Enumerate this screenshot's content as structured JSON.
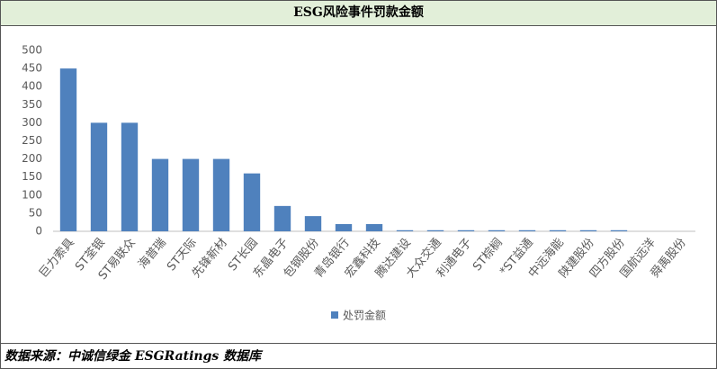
{
  "header": {
    "title": "ESG风险事件罚款金额"
  },
  "chart_data": {
    "type": "bar",
    "categories": [
      "巨力索具",
      "ST荃银",
      "ST易联众",
      "海普瑞",
      "ST天际",
      "先锋新材",
      "ST长园",
      "东晶电子",
      "包钢股份",
      "青岛银行",
      "宏鑫科技",
      "腾达建设",
      "大众交通",
      "利通电子",
      "ST棕榈",
      "*ST益通",
      "中远海能",
      "陕建股份",
      "四方股份",
      "国航远洋",
      "舜禹股份"
    ],
    "series": [
      {
        "name": "处罚金额",
        "color": "#4f81bd",
        "values": [
          450,
          300,
          300,
          200,
          200,
          200,
          160,
          70,
          42,
          20,
          20,
          3,
          3,
          3,
          3,
          3,
          3,
          3,
          3,
          0,
          0
        ]
      }
    ],
    "ylim": [
      0,
      500
    ],
    "yticks": [
      0,
      50,
      100,
      150,
      200,
      250,
      300,
      350,
      400,
      450,
      500
    ],
    "grid": false,
    "legend": "bottom"
  },
  "footer": {
    "source": "数据来源：中诚信绿金 ESGRatings 数据库"
  }
}
